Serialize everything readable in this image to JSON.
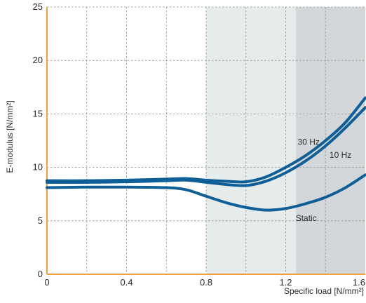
{
  "chart_data": {
    "type": "line",
    "title": "",
    "xlabel": "Specific load [N/mm²]",
    "ylabel": "E-modulus [N/mm²]",
    "xlim": [
      0,
      1.6
    ],
    "ylim": [
      0,
      25
    ],
    "x_ticks": [
      0,
      0.4,
      0.8,
      1.2,
      1.6
    ],
    "x_tick_labels": [
      "0",
      "0.4",
      "0.8",
      "1.2",
      "1.6"
    ],
    "y_ticks": [
      0,
      5,
      10,
      15,
      20,
      25
    ],
    "y_tick_labels": [
      "0",
      "5",
      "10",
      "15",
      "20",
      "25"
    ],
    "grid": true,
    "shaded_regions": [
      {
        "x_start": 0.8,
        "x_end": 1.25,
        "color": "#e6ebec"
      },
      {
        "x_start": 1.25,
        "x_end": 1.6,
        "color": "#d3d7d9"
      }
    ],
    "series": [
      {
        "name": "30 Hz",
        "color": "#0e5f98",
        "points": [
          [
            0,
            8.75
          ],
          [
            0.2,
            8.75
          ],
          [
            0.4,
            8.8
          ],
          [
            0.6,
            8.9
          ],
          [
            0.7,
            8.95
          ],
          [
            0.8,
            8.8
          ],
          [
            0.9,
            8.7
          ],
          [
            1.0,
            8.65
          ],
          [
            1.1,
            9.1
          ],
          [
            1.2,
            10.0
          ],
          [
            1.3,
            11.1
          ],
          [
            1.4,
            12.5
          ],
          [
            1.5,
            14.2
          ],
          [
            1.6,
            16.5
          ]
        ]
      },
      {
        "name": "10 Hz",
        "color": "#0e5f98",
        "points": [
          [
            0,
            8.6
          ],
          [
            0.2,
            8.6
          ],
          [
            0.4,
            8.65
          ],
          [
            0.6,
            8.75
          ],
          [
            0.7,
            8.8
          ],
          [
            0.8,
            8.6
          ],
          [
            0.9,
            8.4
          ],
          [
            1.0,
            8.3
          ],
          [
            1.1,
            8.7
          ],
          [
            1.2,
            9.5
          ],
          [
            1.3,
            10.6
          ],
          [
            1.4,
            12.0
          ],
          [
            1.5,
            13.7
          ],
          [
            1.6,
            15.6
          ]
        ]
      },
      {
        "name": "Static",
        "color": "#0e5f98",
        "points": [
          [
            0,
            8.1
          ],
          [
            0.2,
            8.15
          ],
          [
            0.4,
            8.15
          ],
          [
            0.6,
            8.1
          ],
          [
            0.7,
            7.9
          ],
          [
            0.8,
            7.3
          ],
          [
            0.9,
            6.7
          ],
          [
            1.0,
            6.25
          ],
          [
            1.1,
            6.0
          ],
          [
            1.2,
            6.15
          ],
          [
            1.3,
            6.6
          ],
          [
            1.4,
            7.2
          ],
          [
            1.5,
            8.1
          ],
          [
            1.6,
            9.3
          ]
        ]
      }
    ],
    "series_labels": [
      {
        "text": "30 Hz",
        "x": 1.26,
        "y": 12.1
      },
      {
        "text": "10 Hz",
        "x": 1.42,
        "y": 10.9
      },
      {
        "text": "Static",
        "x": 1.25,
        "y": 5.0
      }
    ]
  },
  "colors": {
    "axis": "#f0a040",
    "grid": "#8c8c8c",
    "line": "#0e5f98"
  }
}
